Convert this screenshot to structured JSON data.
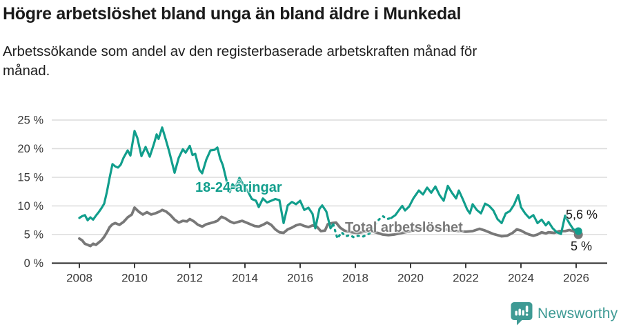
{
  "header": {
    "title": "Högre arbetslöshet bland unga än bland äldre i Munkedal",
    "subtitle": "Arbetssökande som andel av den registerbaserade arbetskraften månad för\nmånad."
  },
  "chart_data": {
    "type": "line",
    "title": "Högre arbetslöshet bland unga än bland äldre i Munkedal",
    "xlabel": "",
    "ylabel": "",
    "x_unit": "year",
    "y_unit": "%",
    "xlim": [
      2007.0,
      2027.125
    ],
    "ylim": [
      0,
      25
    ],
    "y_ticks": [
      0,
      5,
      10,
      15,
      20,
      25
    ],
    "y_tick_suffix": " %",
    "x_ticks": [
      2008,
      2010,
      2012,
      2014,
      2016,
      2018,
      2020,
      2022,
      2024,
      2026
    ],
    "grid": true,
    "grid_color": "#dcdcdc",
    "axis_color": "#3a3a3a",
    "series": [
      {
        "name": "Total arbetslöshet",
        "color": "#787878",
        "line_width": 3.8,
        "end_label": "5 %",
        "end_dot_radius": 6.5,
        "points": [
          [
            2008.0,
            4.3
          ],
          [
            2008.1,
            4.0
          ],
          [
            2008.2,
            3.4
          ],
          [
            2008.3,
            3.2
          ],
          [
            2008.4,
            3.0
          ],
          [
            2008.5,
            3.4
          ],
          [
            2008.6,
            3.2
          ],
          [
            2008.7,
            3.6
          ],
          [
            2008.8,
            4.0
          ],
          [
            2008.9,
            4.6
          ],
          [
            2009.0,
            5.4
          ],
          [
            2009.1,
            6.3
          ],
          [
            2009.2,
            6.8
          ],
          [
            2009.3,
            7.0
          ],
          [
            2009.45,
            6.7
          ],
          [
            2009.6,
            7.2
          ],
          [
            2009.75,
            8.0
          ],
          [
            2009.9,
            8.5
          ],
          [
            2010.0,
            9.7
          ],
          [
            2010.15,
            9.0
          ],
          [
            2010.3,
            8.5
          ],
          [
            2010.45,
            8.9
          ],
          [
            2010.6,
            8.5
          ],
          [
            2010.75,
            8.7
          ],
          [
            2010.9,
            9.0
          ],
          [
            2011.0,
            9.3
          ],
          [
            2011.15,
            9.0
          ],
          [
            2011.3,
            8.4
          ],
          [
            2011.45,
            7.6
          ],
          [
            2011.6,
            7.1
          ],
          [
            2011.75,
            7.4
          ],
          [
            2011.9,
            7.3
          ],
          [
            2012.0,
            7.7
          ],
          [
            2012.15,
            7.3
          ],
          [
            2012.3,
            6.7
          ],
          [
            2012.45,
            6.4
          ],
          [
            2012.6,
            6.8
          ],
          [
            2012.75,
            7.0
          ],
          [
            2012.9,
            7.2
          ],
          [
            2013.0,
            7.4
          ],
          [
            2013.15,
            8.1
          ],
          [
            2013.3,
            7.8
          ],
          [
            2013.45,
            7.3
          ],
          [
            2013.6,
            7.0
          ],
          [
            2013.75,
            7.2
          ],
          [
            2013.9,
            7.4
          ],
          [
            2014.05,
            7.1
          ],
          [
            2014.2,
            6.8
          ],
          [
            2014.35,
            6.5
          ],
          [
            2014.5,
            6.4
          ],
          [
            2014.65,
            6.7
          ],
          [
            2014.8,
            7.1
          ],
          [
            2014.95,
            6.7
          ],
          [
            2015.1,
            5.9
          ],
          [
            2015.25,
            5.4
          ],
          [
            2015.4,
            5.3
          ],
          [
            2015.55,
            5.9
          ],
          [
            2015.7,
            6.2
          ],
          [
            2015.85,
            6.6
          ],
          [
            2016.0,
            6.8
          ],
          [
            2016.15,
            6.5
          ],
          [
            2016.3,
            6.3
          ],
          [
            2016.45,
            6.6
          ],
          [
            2016.6,
            6.4
          ],
          [
            2016.75,
            5.6
          ],
          [
            2016.9,
            5.7
          ],
          [
            2017.0,
            6.8
          ],
          [
            2017.15,
            7.0
          ],
          [
            2017.3,
            7.1
          ],
          [
            2017.45,
            6.2
          ],
          [
            2017.6,
            5.7
          ],
          [
            2017.75,
            5.5
          ],
          [
            2017.9,
            5.4
          ],
          [
            2018.05,
            5.3
          ],
          [
            2018.2,
            5.4
          ],
          [
            2018.35,
            5.5
          ],
          [
            2018.5,
            5.6
          ],
          [
            2018.65,
            5.5
          ],
          [
            2018.8,
            5.3
          ],
          [
            2019.0,
            5.0
          ],
          [
            2019.2,
            4.9
          ],
          [
            2019.4,
            5.0
          ],
          [
            2019.6,
            5.2
          ],
          [
            2019.8,
            5.4
          ],
          [
            2020.0,
            5.6
          ],
          [
            2020.25,
            5.9
          ],
          [
            2020.5,
            6.2
          ],
          [
            2020.75,
            6.1
          ],
          [
            2021.0,
            6.0
          ],
          [
            2021.25,
            5.9
          ],
          [
            2021.5,
            5.7
          ],
          [
            2021.75,
            5.6
          ],
          [
            2022.0,
            5.5
          ],
          [
            2022.25,
            5.6
          ],
          [
            2022.5,
            6.0
          ],
          [
            2022.7,
            5.7
          ],
          [
            2022.9,
            5.3
          ],
          [
            2023.0,
            5.1
          ],
          [
            2023.15,
            4.9
          ],
          [
            2023.3,
            4.7
          ],
          [
            2023.5,
            4.8
          ],
          [
            2023.7,
            5.3
          ],
          [
            2023.85,
            5.9
          ],
          [
            2024.0,
            5.7
          ],
          [
            2024.15,
            5.3
          ],
          [
            2024.3,
            5.0
          ],
          [
            2024.45,
            4.8
          ],
          [
            2024.6,
            5.0
          ],
          [
            2024.75,
            5.4
          ],
          [
            2024.9,
            5.2
          ],
          [
            2025.0,
            5.4
          ],
          [
            2025.2,
            5.3
          ],
          [
            2025.4,
            5.6
          ],
          [
            2025.6,
            5.6
          ],
          [
            2025.75,
            5.8
          ],
          [
            2025.9,
            5.6
          ],
          [
            2026.08,
            5.0
          ]
        ]
      },
      {
        "name": "18-24-åringar",
        "color": "#119E8C",
        "line_width": 3.2,
        "end_label": "5,6 %",
        "end_dot_radius": 5.5,
        "dashed_between": [
          2017.35,
          2019.3
        ],
        "points": [
          [
            2008.0,
            7.9
          ],
          [
            2008.1,
            8.2
          ],
          [
            2008.2,
            8.4
          ],
          [
            2008.3,
            7.5
          ],
          [
            2008.4,
            8.0
          ],
          [
            2008.5,
            7.6
          ],
          [
            2008.6,
            8.3
          ],
          [
            2008.7,
            8.9
          ],
          [
            2008.8,
            9.6
          ],
          [
            2008.9,
            10.4
          ],
          [
            2009.0,
            12.5
          ],
          [
            2009.1,
            15.0
          ],
          [
            2009.2,
            17.3
          ],
          [
            2009.3,
            16.9
          ],
          [
            2009.4,
            16.7
          ],
          [
            2009.5,
            17.2
          ],
          [
            2009.6,
            18.4
          ],
          [
            2009.75,
            19.7
          ],
          [
            2009.85,
            18.8
          ],
          [
            2010.0,
            23.1
          ],
          [
            2010.1,
            21.9
          ],
          [
            2010.25,
            18.7
          ],
          [
            2010.4,
            20.3
          ],
          [
            2010.55,
            18.6
          ],
          [
            2010.7,
            20.8
          ],
          [
            2010.8,
            22.5
          ],
          [
            2010.87,
            21.7
          ],
          [
            2011.0,
            23.7
          ],
          [
            2011.1,
            22.1
          ],
          [
            2011.25,
            19.6
          ],
          [
            2011.45,
            15.8
          ],
          [
            2011.6,
            18.4
          ],
          [
            2011.75,
            19.9
          ],
          [
            2011.85,
            19.3
          ],
          [
            2012.0,
            20.5
          ],
          [
            2012.1,
            18.9
          ],
          [
            2012.2,
            19.1
          ],
          [
            2012.35,
            16.3
          ],
          [
            2012.45,
            15.7
          ],
          [
            2012.6,
            18.1
          ],
          [
            2012.75,
            19.7
          ],
          [
            2012.9,
            19.8
          ],
          [
            2013.0,
            20.2
          ],
          [
            2013.1,
            18.3
          ],
          [
            2013.2,
            17.1
          ],
          [
            2013.35,
            14.1
          ],
          [
            2013.45,
            12.4
          ],
          [
            2013.55,
            13.8
          ],
          [
            2013.65,
            13.2
          ],
          [
            2013.8,
            14.9
          ],
          [
            2013.95,
            13.6
          ],
          [
            2014.1,
            12.6
          ],
          [
            2014.25,
            11.2
          ],
          [
            2014.4,
            10.9
          ],
          [
            2014.5,
            9.8
          ],
          [
            2014.65,
            11.3
          ],
          [
            2014.8,
            10.6
          ],
          [
            2014.95,
            10.9
          ],
          [
            2015.1,
            11.2
          ],
          [
            2015.25,
            11.0
          ],
          [
            2015.4,
            7.0
          ],
          [
            2015.55,
            10.1
          ],
          [
            2015.7,
            10.7
          ],
          [
            2015.85,
            10.3
          ],
          [
            2016.0,
            10.9
          ],
          [
            2016.15,
            9.3
          ],
          [
            2016.3,
            9.7
          ],
          [
            2016.45,
            8.6
          ],
          [
            2016.55,
            6.1
          ],
          [
            2016.7,
            9.5
          ],
          [
            2016.8,
            10.1
          ],
          [
            2016.95,
            9.0
          ],
          [
            2017.1,
            6.1
          ],
          [
            2017.2,
            6.8
          ],
          [
            2017.35,
            4.3
          ],
          [
            2017.5,
            5.4
          ],
          [
            2017.65,
            4.7
          ],
          [
            2017.8,
            4.9
          ],
          [
            2017.95,
            4.5
          ],
          [
            2018.1,
            4.8
          ],
          [
            2018.25,
            4.6
          ],
          [
            2018.4,
            4.9
          ],
          [
            2018.55,
            5.3
          ],
          [
            2018.7,
            6.6
          ],
          [
            2018.85,
            7.6
          ],
          [
            2019.0,
            8.2
          ],
          [
            2019.15,
            7.7
          ],
          [
            2019.3,
            7.9
          ],
          [
            2019.45,
            8.4
          ],
          [
            2019.6,
            9.4
          ],
          [
            2019.7,
            10.0
          ],
          [
            2019.8,
            9.2
          ],
          [
            2019.95,
            9.9
          ],
          [
            2020.1,
            11.3
          ],
          [
            2020.3,
            12.7
          ],
          [
            2020.45,
            12.0
          ],
          [
            2020.6,
            13.2
          ],
          [
            2020.75,
            12.3
          ],
          [
            2020.9,
            13.4
          ],
          [
            2021.05,
            11.9
          ],
          [
            2021.2,
            10.9
          ],
          [
            2021.35,
            13.5
          ],
          [
            2021.5,
            12.3
          ],
          [
            2021.65,
            11.3
          ],
          [
            2021.75,
            12.7
          ],
          [
            2021.9,
            11.1
          ],
          [
            2022.05,
            9.4
          ],
          [
            2022.15,
            8.7
          ],
          [
            2022.25,
            10.3
          ],
          [
            2022.4,
            9.3
          ],
          [
            2022.55,
            8.7
          ],
          [
            2022.7,
            10.4
          ],
          [
            2022.85,
            10.0
          ],
          [
            2023.0,
            9.2
          ],
          [
            2023.15,
            7.7
          ],
          [
            2023.3,
            7.0
          ],
          [
            2023.45,
            8.7
          ],
          [
            2023.6,
            9.1
          ],
          [
            2023.75,
            10.2
          ],
          [
            2023.9,
            11.9
          ],
          [
            2024.0,
            9.8
          ],
          [
            2024.15,
            8.7
          ],
          [
            2024.3,
            7.9
          ],
          [
            2024.45,
            8.4
          ],
          [
            2024.6,
            7.0
          ],
          [
            2024.75,
            7.6
          ],
          [
            2024.9,
            6.6
          ],
          [
            2025.0,
            7.2
          ],
          [
            2025.15,
            6.1
          ],
          [
            2025.3,
            5.4
          ],
          [
            2025.45,
            5.1
          ],
          [
            2025.6,
            8.3
          ],
          [
            2025.75,
            7.0
          ],
          [
            2025.9,
            5.9
          ],
          [
            2026.08,
            5.6
          ]
        ]
      }
    ]
  },
  "footer": {
    "brand": "Newsworthy",
    "brand_color": "#3E9A94",
    "logo_icon": "bar-chart-exclamation-bubble"
  }
}
